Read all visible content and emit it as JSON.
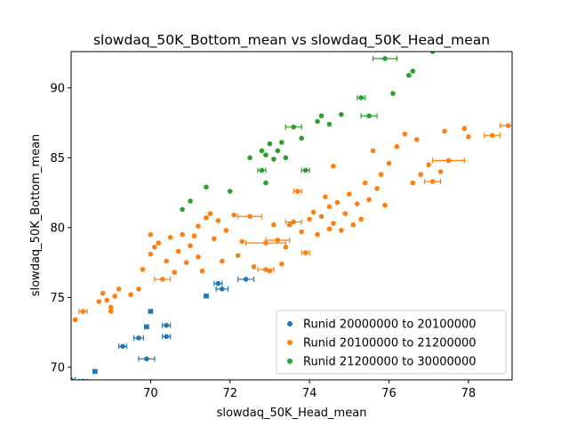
{
  "chart_data": {
    "type": "scatter",
    "title": "slowdaq_50K_Bottom_mean vs slowdaq_50K_Head_mean",
    "xlabel": "slowdaq_50K_Head_mean",
    "ylabel": "slowdaq_50K_Bottom_mean",
    "xlim": [
      68.0,
      79.1
    ],
    "ylim": [
      69.1,
      92.6
    ],
    "xticks": [
      70,
      72,
      74,
      76,
      78
    ],
    "yticks": [
      70,
      75,
      80,
      85,
      90
    ],
    "grid": false,
    "legend_position": "lower-right",
    "series": [
      {
        "name": "Runid 20000000 to 20100000",
        "color": "#1f77b4",
        "points": [
          {
            "x": 68.0,
            "y": 69.1,
            "xerr": 0.1
          },
          {
            "x": 68.6,
            "y": 69.7,
            "xerr": 0.05
          },
          {
            "x": 68.3,
            "y": 69.0,
            "xerr": 0.1
          },
          {
            "x": 69.3,
            "y": 71.5,
            "xerr": 0.1
          },
          {
            "x": 69.7,
            "y": 72.1,
            "xerr": 0.12
          },
          {
            "x": 69.9,
            "y": 72.9,
            "xerr": 0.05
          },
          {
            "x": 69.9,
            "y": 70.6,
            "xerr": 0.2
          },
          {
            "x": 70.0,
            "y": 74.0,
            "xerr": 0.05
          },
          {
            "x": 70.4,
            "y": 73.0,
            "xerr": 0.1
          },
          {
            "x": 70.4,
            "y": 72.2,
            "xerr": 0.1
          },
          {
            "x": 71.4,
            "y": 75.1,
            "xerr": 0.05
          },
          {
            "x": 71.7,
            "y": 76.0,
            "xerr": 0.1
          },
          {
            "x": 71.8,
            "y": 75.6,
            "xerr": 0.15
          },
          {
            "x": 72.4,
            "y": 76.3,
            "xerr": 0.2
          }
        ]
      },
      {
        "name": "Runid 20100000 to 21200000",
        "color": "#ff7f0e",
        "points": [
          {
            "x": 68.1,
            "y": 73.4
          },
          {
            "x": 68.3,
            "y": 74.0,
            "xerr": 0.1
          },
          {
            "x": 68.7,
            "y": 74.7
          },
          {
            "x": 68.8,
            "y": 75.3
          },
          {
            "x": 68.9,
            "y": 74.8
          },
          {
            "x": 69.0,
            "y": 74.3
          },
          {
            "x": 69.1,
            "y": 75.1
          },
          {
            "x": 69.0,
            "y": 74.0
          },
          {
            "x": 69.2,
            "y": 75.6
          },
          {
            "x": 69.5,
            "y": 75.2
          },
          {
            "x": 69.7,
            "y": 75.6
          },
          {
            "x": 69.8,
            "y": 77.0
          },
          {
            "x": 70.0,
            "y": 78.1
          },
          {
            "x": 70.0,
            "y": 79.5
          },
          {
            "x": 70.1,
            "y": 78.6
          },
          {
            "x": 70.2,
            "y": 78.9
          },
          {
            "x": 70.3,
            "y": 76.3,
            "xerr": 0.2
          },
          {
            "x": 70.4,
            "y": 77.6
          },
          {
            "x": 70.5,
            "y": 79.3
          },
          {
            "x": 70.6,
            "y": 76.8
          },
          {
            "x": 70.7,
            "y": 78.3
          },
          {
            "x": 70.8,
            "y": 79.5
          },
          {
            "x": 70.9,
            "y": 77.5
          },
          {
            "x": 71.0,
            "y": 78.7
          },
          {
            "x": 71.1,
            "y": 79.4
          },
          {
            "x": 71.2,
            "y": 80.1
          },
          {
            "x": 71.2,
            "y": 77.9
          },
          {
            "x": 71.3,
            "y": 76.9
          },
          {
            "x": 71.4,
            "y": 80.7
          },
          {
            "x": 71.5,
            "y": 81.0
          },
          {
            "x": 71.6,
            "y": 79.2
          },
          {
            "x": 71.7,
            "y": 80.5
          },
          {
            "x": 71.8,
            "y": 77.6
          },
          {
            "x": 71.9,
            "y": 79.8
          },
          {
            "x": 72.1,
            "y": 80.9
          },
          {
            "x": 72.2,
            "y": 78.0
          },
          {
            "x": 72.3,
            "y": 79.0
          },
          {
            "x": 72.5,
            "y": 80.8,
            "xerr": 0.3
          },
          {
            "x": 72.6,
            "y": 77.2
          },
          {
            "x": 72.9,
            "y": 78.9,
            "xerr": 0.5
          },
          {
            "x": 72.9,
            "y": 77.0,
            "xerr": 0.2
          },
          {
            "x": 73.0,
            "y": 76.9
          },
          {
            "x": 73.1,
            "y": 80.2
          },
          {
            "x": 73.2,
            "y": 79.1,
            "xerr": 0.3
          },
          {
            "x": 73.3,
            "y": 77.4
          },
          {
            "x": 73.4,
            "y": 78.6
          },
          {
            "x": 73.5,
            "y": 80.2
          },
          {
            "x": 73.6,
            "y": 80.4,
            "xerr": 0.2
          },
          {
            "x": 73.7,
            "y": 82.6,
            "xerr": 0.1
          },
          {
            "x": 73.8,
            "y": 79.7
          },
          {
            "x": 73.9,
            "y": 78.2,
            "xerr": 0.1
          },
          {
            "x": 74.0,
            "y": 80.6
          },
          {
            "x": 74.1,
            "y": 81.1
          },
          {
            "x": 74.2,
            "y": 79.5
          },
          {
            "x": 74.3,
            "y": 80.8
          },
          {
            "x": 74.4,
            "y": 82.2
          },
          {
            "x": 74.5,
            "y": 79.9
          },
          {
            "x": 74.5,
            "y": 81.5
          },
          {
            "x": 74.6,
            "y": 80.3
          },
          {
            "x": 74.6,
            "y": 84.4
          },
          {
            "x": 74.7,
            "y": 81.8
          },
          {
            "x": 74.8,
            "y": 79.8
          },
          {
            "x": 74.9,
            "y": 81.0
          },
          {
            "x": 75.0,
            "y": 82.4
          },
          {
            "x": 75.1,
            "y": 80.2
          },
          {
            "x": 75.2,
            "y": 81.7
          },
          {
            "x": 75.3,
            "y": 80.6
          },
          {
            "x": 75.4,
            "y": 83.2
          },
          {
            "x": 75.5,
            "y": 82.0
          },
          {
            "x": 75.6,
            "y": 85.5
          },
          {
            "x": 75.7,
            "y": 82.8
          },
          {
            "x": 75.8,
            "y": 83.8
          },
          {
            "x": 75.9,
            "y": 81.6
          },
          {
            "x": 76.0,
            "y": 84.6
          },
          {
            "x": 76.2,
            "y": 85.8
          },
          {
            "x": 76.4,
            "y": 86.7
          },
          {
            "x": 76.6,
            "y": 83.2
          },
          {
            "x": 76.7,
            "y": 86.3
          },
          {
            "x": 76.8,
            "y": 83.8
          },
          {
            "x": 77.0,
            "y": 84.5
          },
          {
            "x": 77.1,
            "y": 83.3,
            "xerr": 0.2
          },
          {
            "x": 77.3,
            "y": 84.0
          },
          {
            "x": 77.4,
            "y": 86.9
          },
          {
            "x": 77.5,
            "y": 84.8,
            "xerr": 0.4
          },
          {
            "x": 77.9,
            "y": 87.1
          },
          {
            "x": 78.0,
            "y": 86.5
          },
          {
            "x": 78.6,
            "y": 86.6,
            "xerr": 0.2
          },
          {
            "x": 79.0,
            "y": 87.3,
            "xerr": 0.2
          }
        ]
      },
      {
        "name": "Runid 21200000 to 30000000",
        "color": "#2ca02c",
        "points": [
          {
            "x": 70.8,
            "y": 81.3
          },
          {
            "x": 71.0,
            "y": 81.9
          },
          {
            "x": 71.4,
            "y": 82.9
          },
          {
            "x": 72.0,
            "y": 82.6
          },
          {
            "x": 72.5,
            "y": 85.0
          },
          {
            "x": 72.8,
            "y": 84.1,
            "xerr": 0.1
          },
          {
            "x": 72.8,
            "y": 85.5
          },
          {
            "x": 72.9,
            "y": 83.2
          },
          {
            "x": 72.9,
            "y": 85.2
          },
          {
            "x": 73.0,
            "y": 86.0
          },
          {
            "x": 73.1,
            "y": 84.9
          },
          {
            "x": 73.2,
            "y": 85.5
          },
          {
            "x": 73.3,
            "y": 86.1
          },
          {
            "x": 73.4,
            "y": 85.0
          },
          {
            "x": 73.6,
            "y": 87.2,
            "xerr": 0.2
          },
          {
            "x": 73.8,
            "y": 86.4
          },
          {
            "x": 73.9,
            "y": 84.1,
            "xerr": 0.1
          },
          {
            "x": 74.2,
            "y": 87.6
          },
          {
            "x": 74.3,
            "y": 88.0
          },
          {
            "x": 74.5,
            "y": 87.4
          },
          {
            "x": 74.8,
            "y": 88.1
          },
          {
            "x": 75.3,
            "y": 89.3,
            "xerr": 0.1
          },
          {
            "x": 75.5,
            "y": 88.0,
            "xerr": 0.2
          },
          {
            "x": 76.1,
            "y": 89.6
          },
          {
            "x": 76.5,
            "y": 90.9
          },
          {
            "x": 76.6,
            "y": 91.2
          },
          {
            "x": 75.9,
            "y": 92.1,
            "xerr": 0.3
          },
          {
            "x": 77.1,
            "y": 92.6
          }
        ]
      }
    ]
  }
}
